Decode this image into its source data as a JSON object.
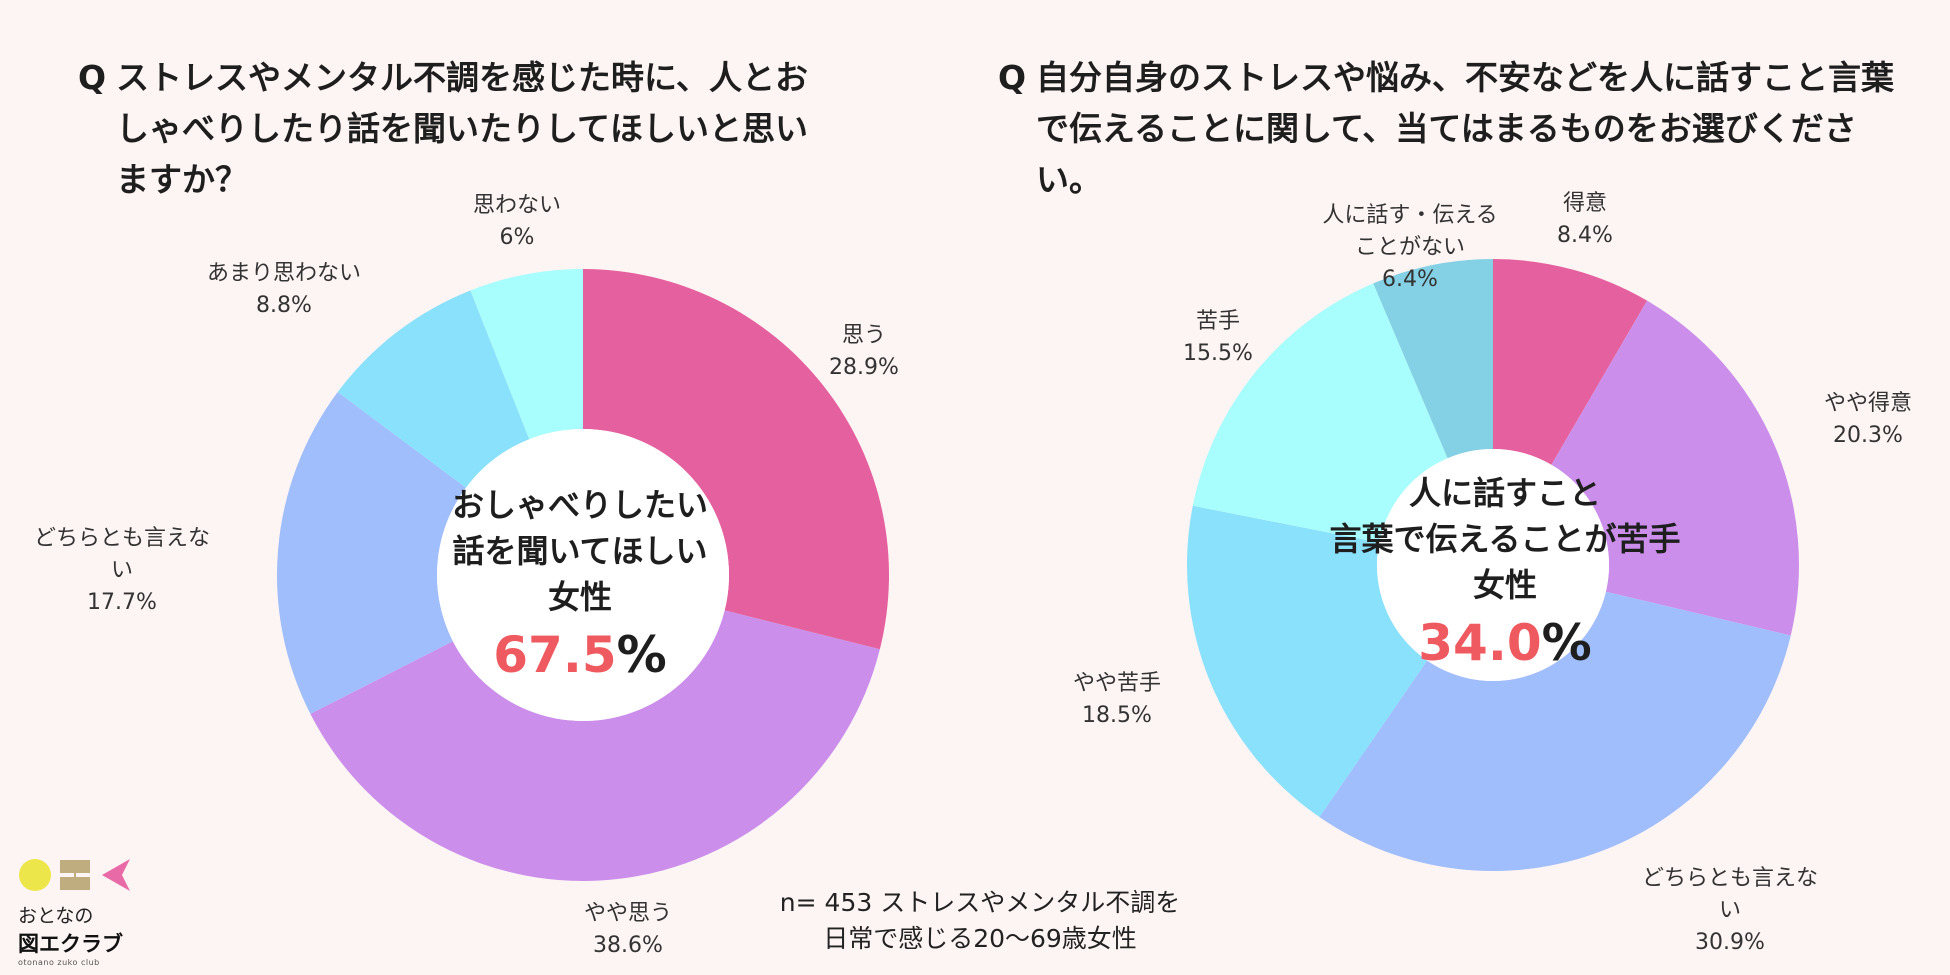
{
  "colors": {
    "accent": "#ee5a5f"
  },
  "chart_data": [
    {
      "type": "pie",
      "title_mark": "Q",
      "title": "ストレスやメンタル不調を感じた時に、人とおしゃべりしたり話を聞いたりしてほしいと思いますか？",
      "slices": [
        {
          "label": "思う",
          "value": 28.9,
          "display": "28.9%",
          "color": "#e5609e"
        },
        {
          "label": "やや思う",
          "value": 38.6,
          "display": "38.6%",
          "color": "#cb8feb"
        },
        {
          "label": "どちらとも言えない",
          "value": 17.7,
          "display": "17.7%",
          "color": "#a0bdfc"
        },
        {
          "label": "あまり思わない",
          "value": 8.8,
          "display": "8.8%",
          "color": "#89e1fc"
        },
        {
          "label": "思わない",
          "value": 6.0,
          "display": "6%",
          "color": "#a8fdfd"
        }
      ],
      "center": {
        "lines": [
          "おしゃべりしたい",
          "話を聞いてほしい",
          "女性"
        ],
        "value": "67.5",
        "unit": "%"
      }
    },
    {
      "type": "pie",
      "title_mark": "Q",
      "title": "自分自身のストレスや悩み、不安などを人に話すこと言葉で伝えることに関して、当てはまるものをお選びください。",
      "slices": [
        {
          "label": "得意",
          "value": 8.4,
          "display": "8.4%",
          "color": "#e5609e"
        },
        {
          "label": "やや得意",
          "value": 20.3,
          "display": "20.3%",
          "color": "#cb8feb"
        },
        {
          "label": "どちらとも言えない",
          "value": 30.9,
          "display": "30.9%",
          "color": "#a0bdfc"
        },
        {
          "label": "やや苦手",
          "value": 18.5,
          "display": "18.5%",
          "color": "#89e1fc"
        },
        {
          "label": "苦手",
          "value": 15.5,
          "display": "15.5%",
          "color": "#a8fdfd"
        },
        {
          "label": "人に話す・伝えることがない",
          "value": 6.4,
          "display": "6.4%",
          "color": "#84d0e4"
        }
      ],
      "center": {
        "lines": [
          "人に話すこと",
          "言葉で伝えることが苦手",
          "女性"
        ],
        "value": "34.0",
        "unit": "%"
      }
    }
  ],
  "footnote": {
    "line1": "n= 453 ストレスやメンタル不調を",
    "line2": "日常で感じる20〜69歳女性"
  },
  "logo": {
    "line1": "おとなの",
    "line2": "図エクラブ",
    "line3": "otonano zuko club",
    "colors": [
      "#ede64a",
      "#bfad7f",
      "#e86aa6"
    ]
  }
}
